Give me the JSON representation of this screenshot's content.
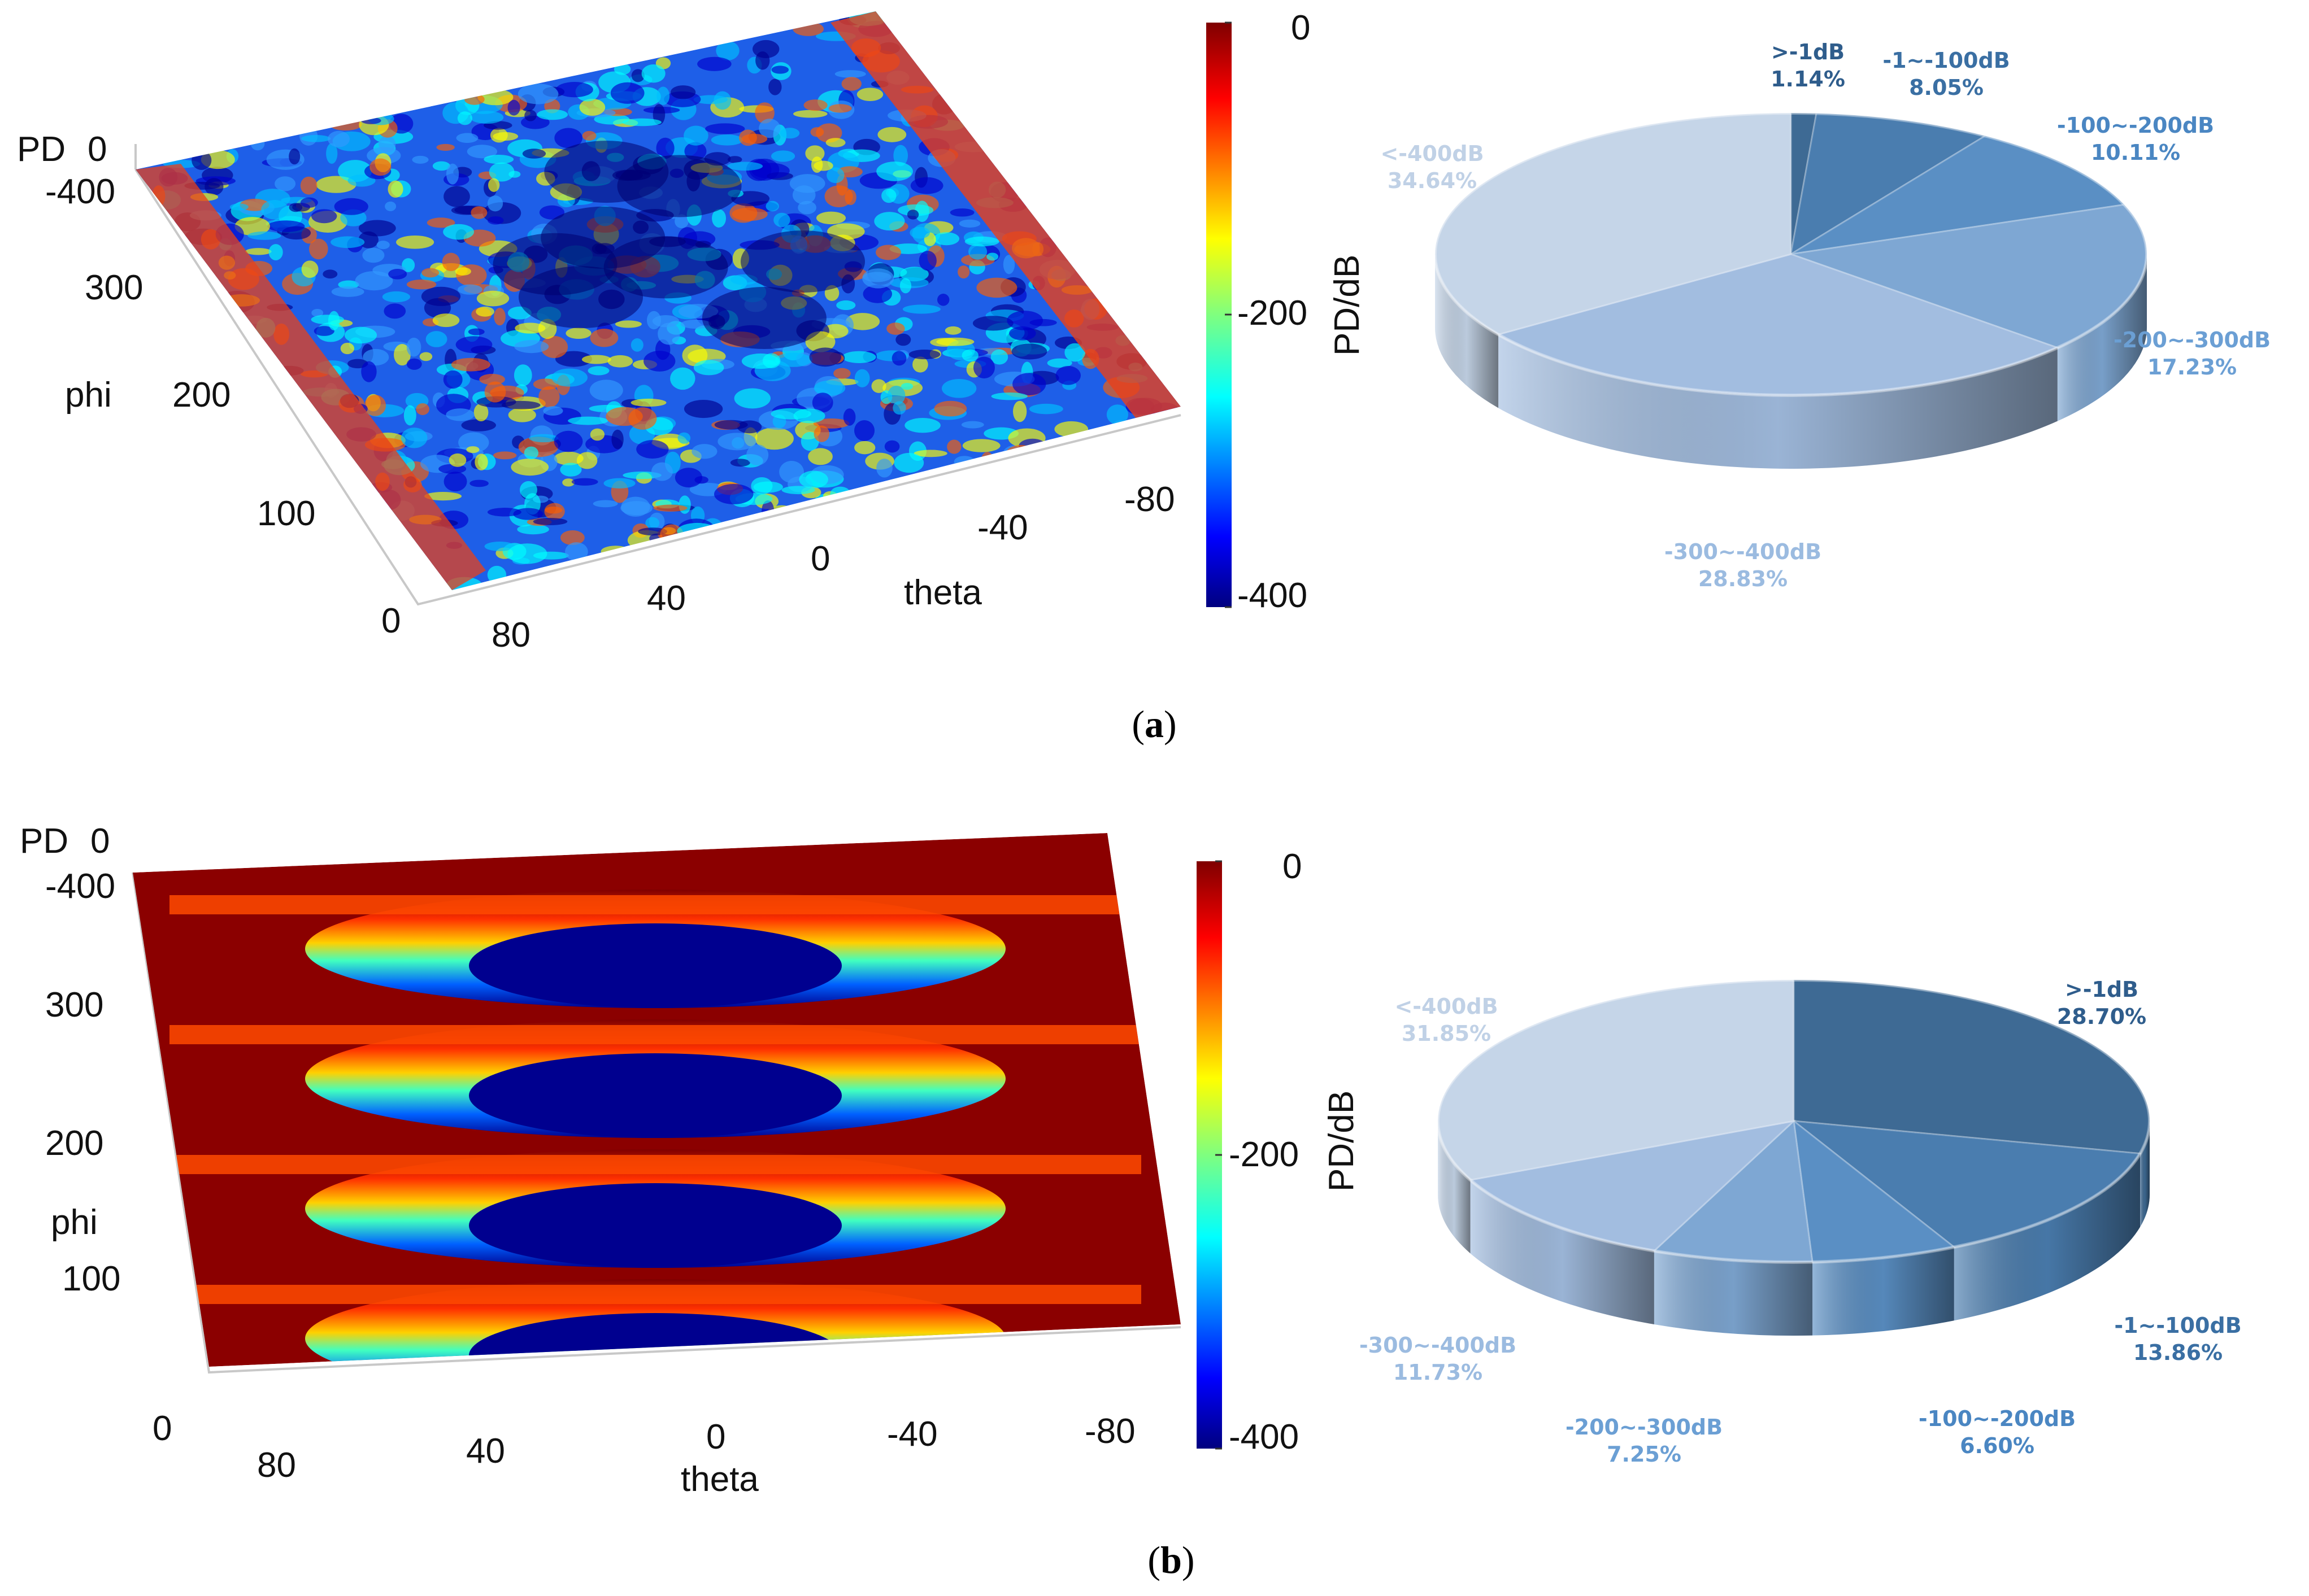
{
  "panels": [
    {
      "caption": "a",
      "surface": {
        "z_label": "PD",
        "z_ticks": [
          "0",
          "-400"
        ],
        "y_label": "phi",
        "y_ticks": [
          "300",
          "200",
          "100",
          "0"
        ],
        "x_label": "theta",
        "x_ticks": [
          "80",
          "40",
          "0",
          "-40",
          "-80"
        ],
        "pattern": "scattered"
      },
      "colorbar": {
        "label": "PD/dB",
        "ticks": [
          "0",
          "-200",
          "-400"
        ]
      }
    },
    {
      "caption": "b",
      "surface": {
        "z_label": "PD",
        "z_ticks": [
          "0",
          "-400"
        ],
        "y_label": "phi",
        "y_ticks": [
          "300",
          "200",
          "100",
          "0"
        ],
        "x_label": "theta",
        "x_ticks": [
          "80",
          "40",
          "0",
          "-40",
          "-80"
        ],
        "pattern": "banded"
      },
      "colorbar": {
        "label": "PD/dB",
        "ticks": [
          "0",
          "-200",
          "-400"
        ]
      }
    }
  ],
  "chart_data": [
    {
      "type": "heatmap",
      "title": "",
      "xlabel": "theta",
      "ylabel": "phi",
      "zlabel": "PD",
      "colorbar_label": "PD/dB",
      "xlim": [
        90,
        -90
      ],
      "ylim": [
        0,
        360
      ],
      "zlim": [
        -400,
        0
      ],
      "colormap": "jet"
    },
    {
      "type": "pie",
      "labels": [
        ">-1dB",
        "-1~-100dB",
        "-100~-200dB",
        "-200~-300dB",
        "-300~-400dB",
        "<-400dB"
      ],
      "values": [
        1.14,
        8.05,
        10.11,
        17.23,
        28.83,
        34.64
      ],
      "display_values": [
        "1.14%",
        "8.05%",
        "10.11%",
        "17.23%",
        "28.83%",
        "34.64%"
      ],
      "colors": [
        "#3e6a94",
        "#4a7daf",
        "#5a8fc4",
        "#7ea7d3",
        "#a2bde0",
        "#c5d5e8"
      ],
      "label_colors": [
        "#2f5d8c",
        "#3a6fa3",
        "#4a86c2",
        "#6b9fd4",
        "#9bbbe0",
        "#c0d1e6"
      ]
    },
    {
      "type": "heatmap",
      "title": "",
      "xlabel": "theta",
      "ylabel": "phi",
      "zlabel": "PD",
      "colorbar_label": "PD/dB",
      "xlim": [
        90,
        -90
      ],
      "ylim": [
        0,
        360
      ],
      "zlim": [
        -400,
        0
      ],
      "colormap": "jet"
    },
    {
      "type": "pie",
      "labels": [
        ">-1dB",
        "-1~-100dB",
        "-100~-200dB",
        "-200~-300dB",
        "-300~-400dB",
        "<-400dB"
      ],
      "values": [
        28.7,
        13.86,
        6.6,
        7.25,
        11.73,
        31.85
      ],
      "display_values": [
        "28.70%",
        "13.86%",
        "6.60%",
        "7.25%",
        "11.73%",
        "31.85%"
      ],
      "colors": [
        "#3e6a94",
        "#4a7daf",
        "#5a8fc4",
        "#7ea7d3",
        "#a2bde0",
        "#c5d5e8"
      ],
      "label_colors": [
        "#2f5d8c",
        "#3a6fa3",
        "#4a86c2",
        "#6b9fd4",
        "#9bbbe0",
        "#c0d1e6"
      ]
    }
  ]
}
